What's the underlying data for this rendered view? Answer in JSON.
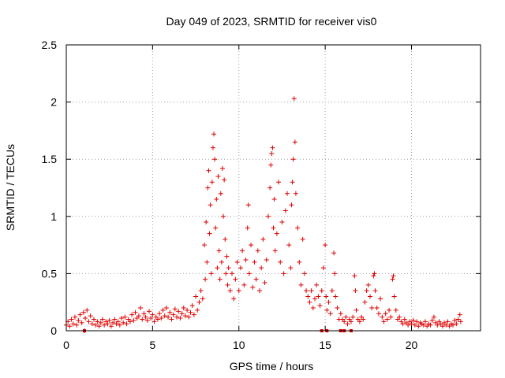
{
  "chart_data": {
    "type": "scatter",
    "title": "Day 049 of 2023, SRMTID for receiver vis0",
    "xlabel": "GPS time / hours",
    "ylabel": "SRMTID / TECUs",
    "xlim": [
      0,
      24
    ],
    "ylim": [
      0,
      2.5
    ],
    "x_ticks": [
      0,
      5,
      10,
      15,
      20
    ],
    "y_ticks": [
      0,
      0.5,
      1,
      1.5,
      2,
      2.5
    ],
    "x_tick_labels": [
      "0",
      "5",
      "10",
      "15",
      "20"
    ],
    "y_tick_labels": [
      "0",
      "0.5",
      "1",
      "1.5",
      "2",
      "2.5"
    ],
    "grid": true,
    "marker": "+",
    "color": "#e00000",
    "series": [
      {
        "name": "vis0",
        "points": [
          [
            0.0,
            0.05
          ],
          [
            0.1,
            0.08
          ],
          [
            0.2,
            0.04
          ],
          [
            0.3,
            0.1
          ],
          [
            0.4,
            0.06
          ],
          [
            0.5,
            0.12
          ],
          [
            0.6,
            0.05
          ],
          [
            0.7,
            0.09
          ],
          [
            0.8,
            0.14
          ],
          [
            0.9,
            0.07
          ],
          [
            1.0,
            0.16
          ],
          [
            1.05,
            0.0
          ],
          [
            1.1,
            0.11
          ],
          [
            1.2,
            0.18
          ],
          [
            1.3,
            0.08
          ],
          [
            1.4,
            0.13
          ],
          [
            1.5,
            0.06
          ],
          [
            1.6,
            0.1
          ],
          [
            1.7,
            0.05
          ],
          [
            1.8,
            0.08
          ],
          [
            1.9,
            0.04
          ],
          [
            2.0,
            0.07
          ],
          [
            2.1,
            0.1
          ],
          [
            2.2,
            0.05
          ],
          [
            2.3,
            0.08
          ],
          [
            2.4,
            0.06
          ],
          [
            2.5,
            0.09
          ],
          [
            2.6,
            0.04
          ],
          [
            2.7,
            0.07
          ],
          [
            2.8,
            0.1
          ],
          [
            2.9,
            0.06
          ],
          [
            3.0,
            0.08
          ],
          [
            3.1,
            0.05
          ],
          [
            3.2,
            0.11
          ],
          [
            3.3,
            0.07
          ],
          [
            3.4,
            0.12
          ],
          [
            3.5,
            0.06
          ],
          [
            3.6,
            0.1
          ],
          [
            3.7,
            0.08
          ],
          [
            3.8,
            0.14
          ],
          [
            3.9,
            0.09
          ],
          [
            4.0,
            0.16
          ],
          [
            4.1,
            0.11
          ],
          [
            4.2,
            0.13
          ],
          [
            4.3,
            0.2
          ],
          [
            4.4,
            0.1
          ],
          [
            4.5,
            0.15
          ],
          [
            4.6,
            0.12
          ],
          [
            4.7,
            0.09
          ],
          [
            4.8,
            0.17
          ],
          [
            4.9,
            0.11
          ],
          [
            5.0,
            0.14
          ],
          [
            5.1,
            0.08
          ],
          [
            5.2,
            0.12
          ],
          [
            5.3,
            0.1
          ],
          [
            5.4,
            0.15
          ],
          [
            5.5,
            0.11
          ],
          [
            5.6,
            0.18
          ],
          [
            5.7,
            0.13
          ],
          [
            5.8,
            0.2
          ],
          [
            5.9,
            0.12
          ],
          [
            6.0,
            0.16
          ],
          [
            6.1,
            0.1
          ],
          [
            6.2,
            0.14
          ],
          [
            6.3,
            0.19
          ],
          [
            6.4,
            0.12
          ],
          [
            6.5,
            0.17
          ],
          [
            6.6,
            0.11
          ],
          [
            6.7,
            0.15
          ],
          [
            6.8,
            0.2
          ],
          [
            6.9,
            0.13
          ],
          [
            7.0,
            0.18
          ],
          [
            7.1,
            0.12
          ],
          [
            7.2,
            0.16
          ],
          [
            7.3,
            0.22
          ],
          [
            7.4,
            0.14
          ],
          [
            7.5,
            0.3
          ],
          [
            7.6,
            0.18
          ],
          [
            7.7,
            0.25
          ],
          [
            7.8,
            0.35
          ],
          [
            7.9,
            0.28
          ],
          [
            8.0,
            0.75
          ],
          [
            8.05,
            0.45
          ],
          [
            8.1,
            0.95
          ],
          [
            8.15,
            0.6
          ],
          [
            8.2,
            1.25
          ],
          [
            8.25,
            1.4
          ],
          [
            8.3,
            0.85
          ],
          [
            8.35,
            1.1
          ],
          [
            8.4,
            0.5
          ],
          [
            8.45,
            1.3
          ],
          [
            8.5,
            1.6
          ],
          [
            8.55,
            1.72
          ],
          [
            8.6,
            1.5
          ],
          [
            8.65,
            0.9
          ],
          [
            8.7,
            1.15
          ],
          [
            8.75,
            0.55
          ],
          [
            8.8,
            1.35
          ],
          [
            8.85,
            0.7
          ],
          [
            8.9,
            0.45
          ],
          [
            8.95,
            1.2
          ],
          [
            9.0,
            0.6
          ],
          [
            9.05,
            1.42
          ],
          [
            9.1,
            1.0
          ],
          [
            9.15,
            1.32
          ],
          [
            9.2,
            0.8
          ],
          [
            9.25,
            0.5
          ],
          [
            9.3,
            0.65
          ],
          [
            9.35,
            0.4
          ],
          [
            9.4,
            0.55
          ],
          [
            9.5,
            0.35
          ],
          [
            9.6,
            0.5
          ],
          [
            9.7,
            0.28
          ],
          [
            9.8,
            0.45
          ],
          [
            9.9,
            0.6
          ],
          [
            10.0,
            0.35
          ],
          [
            10.1,
            0.55
          ],
          [
            10.2,
            0.7
          ],
          [
            10.3,
            0.4
          ],
          [
            10.4,
            0.62
          ],
          [
            10.5,
            0.9
          ],
          [
            10.55,
            1.1
          ],
          [
            10.6,
            0.5
          ],
          [
            10.7,
            0.75
          ],
          [
            10.8,
            0.38
          ],
          [
            10.9,
            0.6
          ],
          [
            11.0,
            0.45
          ],
          [
            11.1,
            0.7
          ],
          [
            11.2,
            0.35
          ],
          [
            11.3,
            0.55
          ],
          [
            11.4,
            0.8
          ],
          [
            11.5,
            0.42
          ],
          [
            11.6,
            0.62
          ],
          [
            11.7,
            1.0
          ],
          [
            11.8,
            1.25
          ],
          [
            11.85,
            1.45
          ],
          [
            11.9,
            1.55
          ],
          [
            11.95,
            1.6
          ],
          [
            12.0,
            0.9
          ],
          [
            12.05,
            1.15
          ],
          [
            12.1,
            0.7
          ],
          [
            12.2,
            0.85
          ],
          [
            12.3,
            1.3
          ],
          [
            12.4,
            0.6
          ],
          [
            12.5,
            0.95
          ],
          [
            12.6,
            0.5
          ],
          [
            12.7,
            1.05
          ],
          [
            12.8,
            1.2
          ],
          [
            12.9,
            0.75
          ],
          [
            13.0,
            0.55
          ],
          [
            13.05,
            1.1
          ],
          [
            13.1,
            1.3
          ],
          [
            13.15,
            1.5
          ],
          [
            13.2,
            2.03
          ],
          [
            13.25,
            1.65
          ],
          [
            13.3,
            1.2
          ],
          [
            13.4,
            0.9
          ],
          [
            13.5,
            0.6
          ],
          [
            13.6,
            0.4
          ],
          [
            13.7,
            0.8
          ],
          [
            13.8,
            0.5
          ],
          [
            13.9,
            0.35
          ],
          [
            14.0,
            0.3
          ],
          [
            14.1,
            0.25
          ],
          [
            14.2,
            0.35
          ],
          [
            14.3,
            0.2
          ],
          [
            14.4,
            0.28
          ],
          [
            14.5,
            0.4
          ],
          [
            14.6,
            0.3
          ],
          [
            14.7,
            0.22
          ],
          [
            14.8,
            0.35
          ],
          [
            14.9,
            0.55
          ],
          [
            15.0,
            0.75
          ],
          [
            15.05,
            0.3
          ],
          [
            15.1,
            0.18
          ],
          [
            15.2,
            0.25
          ],
          [
            15.3,
            0.15
          ],
          [
            15.4,
            0.35
          ],
          [
            15.5,
            0.68
          ],
          [
            15.55,
            0.5
          ],
          [
            15.6,
            0.3
          ],
          [
            15.7,
            0.2
          ],
          [
            15.8,
            0.1
          ],
          [
            15.9,
            0.15
          ],
          [
            16.0,
            0.1
          ],
          [
            16.1,
            0.08
          ],
          [
            16.2,
            0.12
          ],
          [
            16.3,
            0.06
          ],
          [
            16.4,
            0.1
          ],
          [
            16.5,
            0.08
          ],
          [
            16.6,
            0.12
          ],
          [
            16.7,
            0.48
          ],
          [
            16.75,
            0.35
          ],
          [
            16.8,
            0.18
          ],
          [
            16.9,
            0.1
          ],
          [
            17.0,
            0.08
          ],
          [
            17.1,
            0.12
          ],
          [
            17.2,
            0.1
          ],
          [
            17.3,
            0.25
          ],
          [
            17.4,
            0.35
          ],
          [
            17.5,
            0.4
          ],
          [
            17.6,
            0.3
          ],
          [
            17.7,
            0.2
          ],
          [
            17.8,
            0.48
          ],
          [
            17.85,
            0.5
          ],
          [
            17.9,
            0.35
          ],
          [
            18.0,
            0.2
          ],
          [
            18.1,
            0.15
          ],
          [
            18.2,
            0.28
          ],
          [
            18.3,
            0.12
          ],
          [
            18.4,
            0.08
          ],
          [
            18.5,
            0.15
          ],
          [
            18.6,
            0.1
          ],
          [
            18.7,
            0.18
          ],
          [
            18.8,
            0.12
          ],
          [
            18.9,
            0.45
          ],
          [
            18.95,
            0.48
          ],
          [
            19.0,
            0.3
          ],
          [
            19.1,
            0.18
          ],
          [
            19.2,
            0.1
          ],
          [
            19.3,
            0.12
          ],
          [
            19.4,
            0.08
          ],
          [
            19.5,
            0.06
          ],
          [
            19.6,
            0.1
          ],
          [
            19.7,
            0.07
          ],
          [
            19.8,
            0.05
          ],
          [
            19.9,
            0.08
          ],
          [
            20.0,
            0.06
          ],
          [
            20.1,
            0.09
          ],
          [
            20.2,
            0.05
          ],
          [
            20.3,
            0.08
          ],
          [
            20.4,
            0.04
          ],
          [
            20.5,
            0.07
          ],
          [
            20.6,
            0.06
          ],
          [
            20.7,
            0.05
          ],
          [
            20.8,
            0.08
          ],
          [
            20.9,
            0.04
          ],
          [
            21.0,
            0.06
          ],
          [
            21.1,
            0.05
          ],
          [
            21.2,
            0.09
          ],
          [
            21.3,
            0.12
          ],
          [
            21.4,
            0.07
          ],
          [
            21.5,
            0.05
          ],
          [
            21.6,
            0.08
          ],
          [
            21.7,
            0.06
          ],
          [
            21.8,
            0.04
          ],
          [
            21.9,
            0.07
          ],
          [
            22.0,
            0.05
          ],
          [
            22.1,
            0.08
          ],
          [
            22.2,
            0.04
          ],
          [
            22.3,
            0.06
          ],
          [
            22.4,
            0.05
          ],
          [
            22.5,
            0.09
          ],
          [
            22.6,
            0.06
          ],
          [
            22.7,
            0.1
          ],
          [
            22.8,
            0.14
          ],
          [
            22.85,
            0.08
          ]
        ]
      }
    ],
    "baseline_markers": {
      "points": [
        [
          1.05,
          0.0
        ],
        [
          14.8,
          0.0
        ],
        [
          15.1,
          0.0
        ],
        [
          15.9,
          0.0
        ],
        [
          16.1,
          0.0
        ],
        [
          16.5,
          0.0
        ]
      ]
    }
  }
}
